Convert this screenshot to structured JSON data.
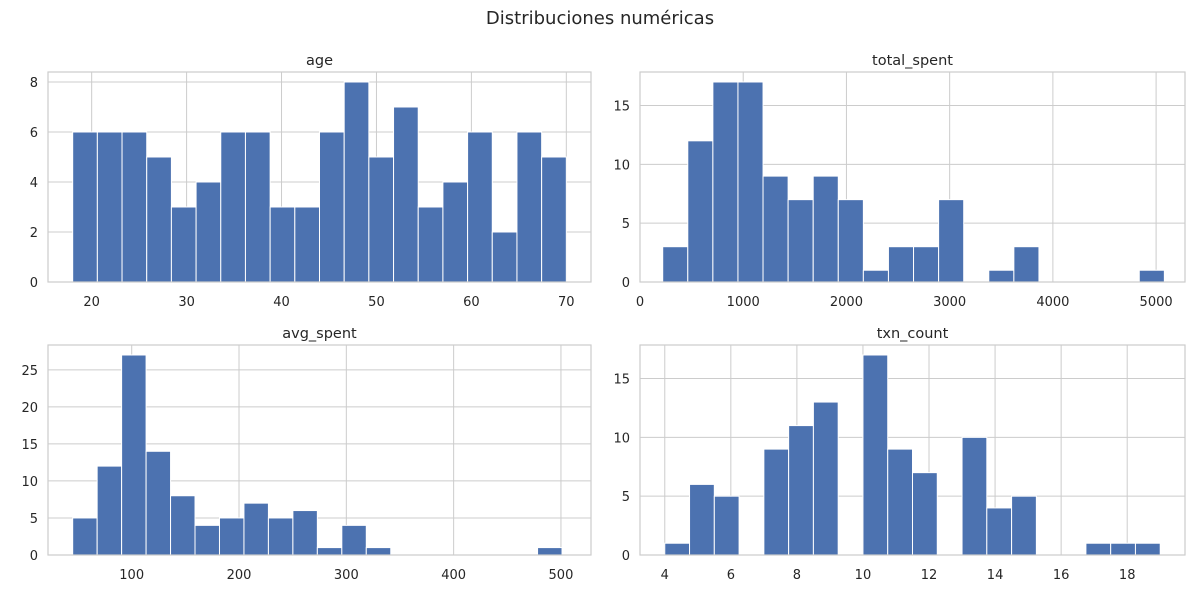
{
  "figure": {
    "title": "Distribuciones numéricas"
  },
  "chart_data": [
    {
      "type": "bar",
      "title": "age",
      "xlim": [
        15.4,
        72.6
      ],
      "ylim": [
        0,
        8.4
      ],
      "xticks": [
        20,
        30,
        40,
        50,
        60,
        70
      ],
      "yticks": [
        0,
        2,
        4,
        6,
        8
      ],
      "bin_edges": [
        18,
        20.6,
        23.2,
        25.8,
        28.4,
        31,
        33.6,
        36.2,
        38.8,
        41.4,
        44,
        46.6,
        49.2,
        51.8,
        54.4,
        57,
        59.6,
        62.2,
        64.8,
        67.4,
        70
      ],
      "values": [
        6,
        6,
        6,
        5,
        3,
        4,
        6,
        6,
        3,
        3,
        6,
        8,
        5,
        7,
        3,
        4,
        6,
        2,
        6,
        5
      ],
      "grid": true,
      "color": "#4c72b0"
    },
    {
      "type": "bar",
      "title": "total_spent",
      "xlim": [
        0,
        5280
      ],
      "ylim": [
        0,
        17.85
      ],
      "xticks": [
        0,
        1000,
        2000,
        3000,
        4000,
        5000
      ],
      "yticks": [
        0,
        5,
        10,
        15
      ],
      "bin_edges": [
        220,
        463,
        706,
        949,
        1192,
        1435,
        1678,
        1921,
        2164,
        2407,
        2650,
        2893,
        3136,
        3379,
        3622,
        3865,
        4108,
        4351,
        4594,
        4837,
        5080
      ],
      "values": [
        3,
        12,
        17,
        17,
        9,
        7,
        9,
        7,
        1,
        3,
        3,
        7,
        0,
        1,
        3,
        0,
        0,
        0,
        0,
        1
      ],
      "grid": true,
      "color": "#4c72b0"
    },
    {
      "type": "bar",
      "title": "avg_spent",
      "xlim": [
        22,
        528
      ],
      "ylim": [
        0,
        28.35
      ],
      "xticks": [
        100,
        200,
        300,
        400,
        500
      ],
      "yticks": [
        0,
        5,
        10,
        15,
        20,
        25
      ],
      "bin_edges": [
        45,
        67.8,
        90.6,
        113.4,
        136.2,
        159,
        181.8,
        204.6,
        227.4,
        250.2,
        273,
        295.8,
        318.6,
        341.4,
        364.2,
        387,
        409.8,
        432.6,
        455.4,
        478.2,
        501
      ],
      "values": [
        5,
        12,
        27,
        14,
        8,
        4,
        5,
        7,
        5,
        6,
        1,
        4,
        1,
        0,
        0,
        0,
        0,
        0,
        0,
        1
      ],
      "grid": true,
      "color": "#4c72b0"
    },
    {
      "type": "bar",
      "title": "txn_count",
      "xlim": [
        3.25,
        19.75
      ],
      "ylim": [
        0,
        17.85
      ],
      "xticks": [
        4,
        6,
        8,
        10,
        12,
        14,
        16,
        18
      ],
      "yticks": [
        0,
        5,
        10,
        15
      ],
      "bin_edges": [
        4,
        4.75,
        5.5,
        6.25,
        7,
        7.75,
        8.5,
        9.25,
        10,
        10.75,
        11.5,
        12.25,
        13,
        13.75,
        14.5,
        15.25,
        16,
        16.75,
        17.5,
        18.25,
        19
      ],
      "values": [
        1,
        6,
        5,
        0,
        9,
        11,
        13,
        0,
        17,
        9,
        7,
        0,
        10,
        4,
        5,
        0,
        0,
        1,
        1,
        1
      ],
      "grid": true,
      "color": "#4c72b0"
    }
  ]
}
